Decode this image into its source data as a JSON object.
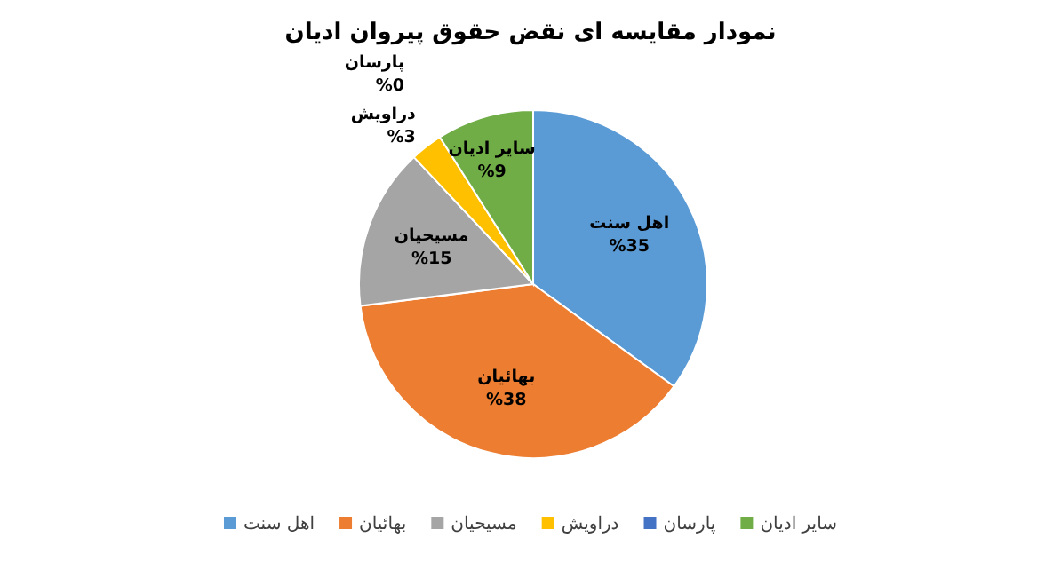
{
  "chart_data": {
    "type": "pie",
    "title": "نمودار مقایسه ای نقض حقوق پیروان ادیان",
    "categories": [
      "اهل سنت",
      "بهائیان",
      "مسیحیان",
      "دراویش",
      "پارسان",
      "سایر ادیان"
    ],
    "values": [
      35,
      38,
      15,
      3,
      0,
      9
    ],
    "value_labels": [
      "%35",
      "%38",
      "%15",
      "%3",
      "%0",
      "%9"
    ],
    "colors": [
      "#5b9bd5",
      "#ed7d31",
      "#a5a5a5",
      "#ffc000",
      "#4472c4",
      "#70ad47"
    ],
    "legend": "bottom"
  }
}
